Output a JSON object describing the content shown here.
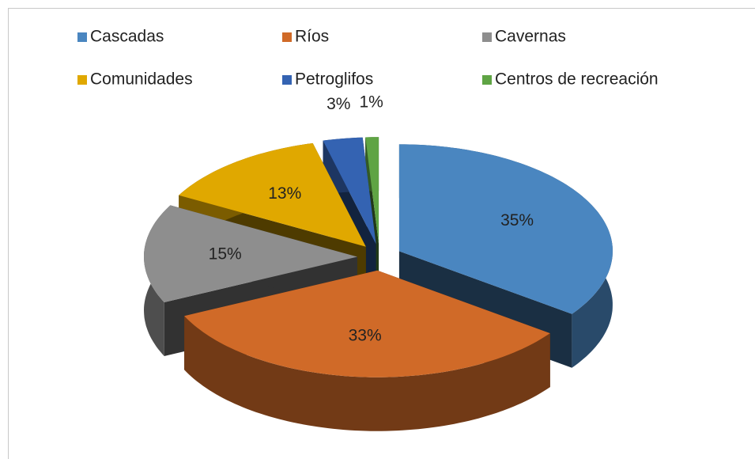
{
  "chart_data": {
    "type": "pie3d",
    "categories": [
      "Cascadas",
      "Ríos",
      "Cavernas",
      "Comunidades",
      "Petroglifos",
      "Centros de recreación"
    ],
    "values": [
      35,
      33,
      15,
      13,
      3,
      1
    ],
    "value_labels": [
      "35%",
      "33%",
      "15%",
      "13%",
      "3%",
      "1%"
    ],
    "colors": [
      "#4a86c0",
      "#d06a28",
      "#8e8e8e",
      "#e0a800",
      "#3463b2",
      "#5fa444"
    ],
    "legend": "top"
  }
}
